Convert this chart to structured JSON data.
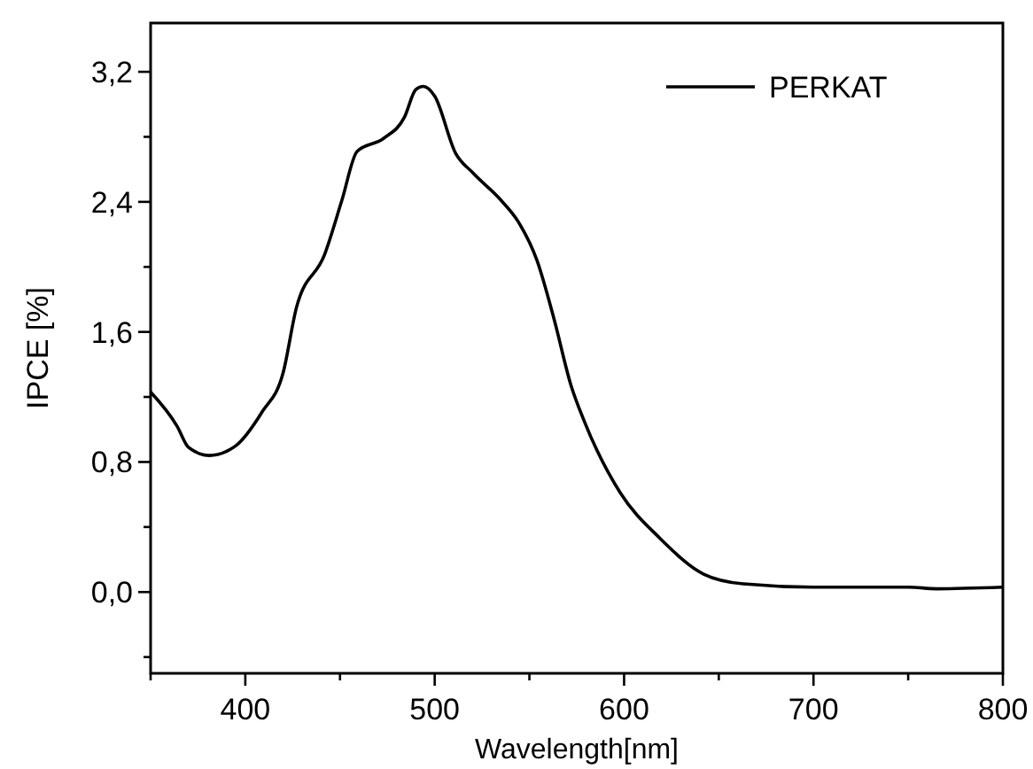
{
  "chart_data": {
    "type": "line",
    "xlabel": "Wavelength[nm]",
    "ylabel": "IPCE [%]",
    "xlim": [
      350,
      800
    ],
    "xticks": [
      {
        "value": 350,
        "label": null
      },
      400,
      {
        "value": 450,
        "label": null
      },
      500,
      {
        "value": 550,
        "label": null
      },
      600,
      {
        "value": 650,
        "label": null
      },
      700,
      {
        "value": 750,
        "label": null
      },
      800
    ],
    "ylim": [
      -0.5,
      3.5
    ],
    "yticks": [
      {
        "value": -0.4,
        "label": null
      },
      {
        "value": 0,
        "label": "0,0"
      },
      {
        "value": 0.4,
        "label": null
      },
      {
        "value": 0.8,
        "label": "0,8"
      },
      {
        "value": 1.2,
        "label": null
      },
      {
        "value": 1.6,
        "label": "1,6"
      },
      {
        "value": 2.0,
        "label": null
      },
      {
        "value": 2.4,
        "label": "2,4"
      },
      {
        "value": 2.8,
        "label": null
      },
      {
        "value": 3.2,
        "label": "3,2"
      }
    ],
    "legend": "top right",
    "grid": false,
    "marker": "none",
    "line_style": "solid",
    "series": [
      {
        "name": "PERKAT",
        "color": "#000000",
        "x": [
          350,
          364,
          370,
          381,
          395,
          409,
          420,
          427,
          442,
          451,
          459,
          473,
          484,
          490,
          494,
          500,
          511,
          520,
          535,
          544,
          554,
          563,
          572,
          579,
          598,
          619,
          642,
          663,
          700,
          750,
          765,
          800
        ],
        "values": [
          1.23,
          1.02,
          0.89,
          0.84,
          0.9,
          1.11,
          1.35,
          1.75,
          2.08,
          2.41,
          2.71,
          2.79,
          2.92,
          3.09,
          3.11,
          3.05,
          2.7,
          2.58,
          2.41,
          2.28,
          2.04,
          1.68,
          1.27,
          1.05,
          0.61,
          0.33,
          0.11,
          0.05,
          0.03,
          0.03,
          0.02,
          0.03
        ]
      }
    ]
  }
}
